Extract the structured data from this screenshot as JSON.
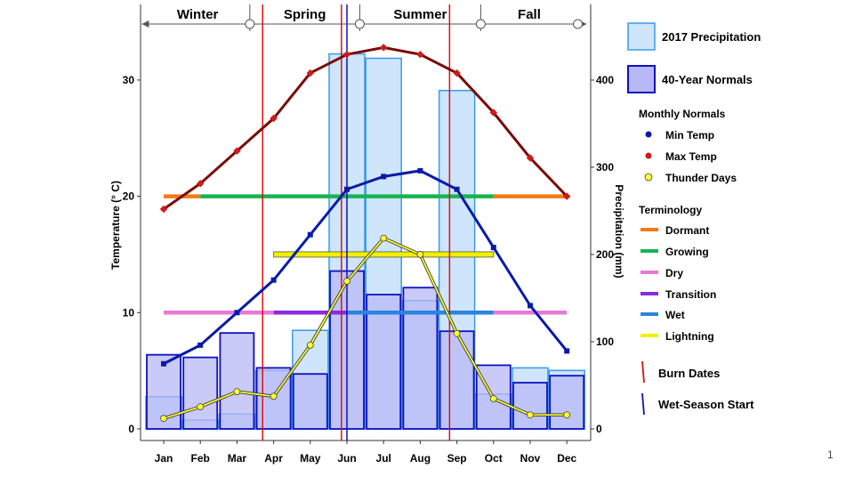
{
  "page_number": "1",
  "colors": {
    "precip2017_fill": "#cfe5fb",
    "precip2017_stroke": "#3a9be8",
    "normals_fill": "#b8b8f6",
    "normals_stroke": "#1010c0",
    "max_temp": "#d11a1a",
    "max_line": "#7a0a0a",
    "min_temp": "#0a1aa8",
    "thunder": "#ffff33",
    "dormant": "#f07c18",
    "growing": "#17b450",
    "dry": "#e878d8",
    "transition": "#8a2be2",
    "wet": "#2a84e0",
    "lightning": "#f0f000",
    "burn": "#e01010",
    "wet_start": "#1010c8"
  },
  "chart_data": {
    "type": "bar",
    "categories": [
      "Jan",
      "Feb",
      "Mar",
      "Apr",
      "May",
      "Jun",
      "Jul",
      "Aug",
      "Sep",
      "Oct",
      "Nov",
      "Dec"
    ],
    "y_left": {
      "label": "Temperature (° C)",
      "ticks": [
        "0",
        "10",
        "20",
        "30"
      ],
      "range": [
        -1,
        36.5
      ]
    },
    "y_right": {
      "label": "Precipitation (mm)",
      "ticks": [
        "0",
        "100",
        "200",
        "300",
        "400"
      ],
      "range": [
        -13.3,
        486.7
      ]
    },
    "seasons": [
      {
        "name": "Winter",
        "start": -0.5,
        "end": 2.35
      },
      {
        "name": "Spring",
        "start": 2.35,
        "end": 5.35
      },
      {
        "name": "Summer",
        "start": 5.35,
        "end": 8.65
      },
      {
        "name": "Fall",
        "start": 8.65,
        "end": 11.3
      }
    ],
    "series": [
      {
        "name": "2017 Precipitation",
        "kind": "bar",
        "values": [
          37,
          10,
          17,
          67,
          113,
          430,
          425,
          147,
          388,
          40,
          70,
          67
        ]
      },
      {
        "name": "40-Year Normals",
        "kind": "bar",
        "values": [
          85,
          82,
          110,
          70,
          63,
          181,
          154,
          162,
          112,
          73,
          53,
          61
        ]
      },
      {
        "name": "Max Temp",
        "kind": "line",
        "values": [
          18.9,
          21.1,
          23.9,
          26.7,
          30.6,
          32.2,
          32.8,
          32.2,
          30.6,
          27.2,
          23.3,
          20.0
        ]
      },
      {
        "name": "Min Temp",
        "kind": "line",
        "values": [
          5.6,
          7.2,
          10.0,
          12.8,
          16.7,
          20.6,
          21.7,
          22.2,
          20.6,
          15.6,
          10.6,
          6.7
        ]
      },
      {
        "name": "Thunder Days",
        "kind": "line",
        "values": [
          0.9,
          1.9,
          3.2,
          2.8,
          7.2,
          12.7,
          16.4,
          15.0,
          8.2,
          2.6,
          1.2,
          1.2
        ]
      }
    ],
    "terminology": [
      {
        "name": "Dormant",
        "level": 20,
        "segments": [
          [
            0,
            1
          ],
          [
            9,
            11
          ]
        ]
      },
      {
        "name": "Growing",
        "level": 20,
        "segments": [
          [
            1,
            9
          ]
        ]
      },
      {
        "name": "Dry",
        "level": 10,
        "segments": [
          [
            0,
            3
          ],
          [
            9,
            11
          ]
        ]
      },
      {
        "name": "Transition",
        "level": 10,
        "segments": [
          [
            3,
            5
          ]
        ]
      },
      {
        "name": "Wet",
        "level": 10,
        "segments": [
          [
            5,
            9
          ]
        ]
      },
      {
        "name": "Lightning",
        "level": 15,
        "segments": [
          [
            3,
            9
          ]
        ]
      }
    ],
    "burn_dates": [
      2.7,
      4.85,
      7.8
    ],
    "wet_season_start": 5.0
  },
  "legend": {
    "precip2017": "2017 Precipitation",
    "normals": "40-Year Normals",
    "monthly_header": "Monthly Normals",
    "min_temp": "Min Temp",
    "max_temp": "Max Temp",
    "thunder_days": "Thunder Days",
    "term_header": "Terminology",
    "dormant": "Dormant",
    "growing": "Growing",
    "dry": "Dry",
    "transition": "Transition",
    "wet": "Wet",
    "lightning": "Lightning",
    "burn_dates": "Burn Dates",
    "wet_start": "Wet-Season Start"
  }
}
